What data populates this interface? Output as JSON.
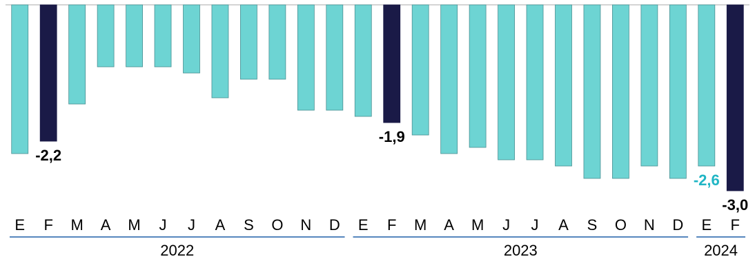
{
  "chart_data": {
    "type": "bar",
    "categories": [
      "E",
      "F",
      "M",
      "A",
      "M",
      "J",
      "J",
      "A",
      "S",
      "O",
      "N",
      "D",
      "E",
      "F",
      "M",
      "A",
      "M",
      "J",
      "J",
      "A",
      "S",
      "O",
      "N",
      "D",
      "E",
      "F"
    ],
    "values": [
      -2.4,
      -2.2,
      -1.6,
      -1.0,
      -1.0,
      -1.0,
      -1.1,
      -1.5,
      -1.2,
      -1.2,
      -1.7,
      -1.7,
      -1.8,
      -1.9,
      -2.1,
      -2.4,
      -2.3,
      -2.5,
      -2.5,
      -2.6,
      -2.8,
      -2.8,
      -2.6,
      -2.8,
      -2.6,
      -3.0
    ],
    "ylim": [
      -3.0,
      0
    ],
    "grid": false,
    "legend": "none",
    "year_groups": [
      {
        "label": "2022",
        "start": 0,
        "end": 11
      },
      {
        "label": "2023",
        "start": 12,
        "end": 23
      },
      {
        "label": "2024",
        "start": 24,
        "end": 25
      }
    ],
    "data_labels": [
      {
        "index": 1,
        "text": "-2,2",
        "color": "#000000"
      },
      {
        "index": 13,
        "text": "-1,9",
        "color": "#000000"
      },
      {
        "index": 24,
        "text": "-2,6",
        "color": "#1fb5c4"
      },
      {
        "index": 25,
        "text": "-3,0",
        "color": "#000000"
      }
    ],
    "highlight_indices": [
      1,
      13,
      25
    ],
    "colors": {
      "bar": "#6dd4d3",
      "bar_stroke": "#4a8f92",
      "highlight": "#1a1a47",
      "axis_line": "#a8a8a8",
      "separator": "#1f5fa8"
    }
  }
}
